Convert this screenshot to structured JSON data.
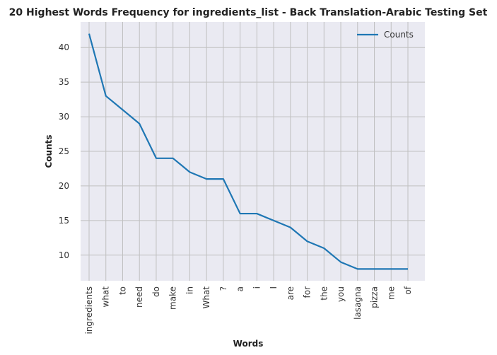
{
  "chart_data": {
    "type": "line",
    "title": "20 Highest Words Frequency for ingredients_list - Back Translation-Arabic Testing Set",
    "xlabel": "Words",
    "ylabel": "Counts",
    "categories": [
      "ingredients",
      "what",
      "to",
      "need",
      "do",
      "make",
      "in",
      "What",
      "?",
      "a",
      "i",
      "I",
      "are",
      "for",
      "the",
      "you",
      "lasagna",
      "pizza",
      "me",
      "of"
    ],
    "series": [
      {
        "name": "Counts",
        "values": [
          42,
          33,
          31,
          29,
          24,
          24,
          22,
          21,
          21,
          16,
          16,
          15,
          14,
          12,
          11,
          9,
          8,
          8,
          8,
          8
        ]
      }
    ],
    "ylim": [
      6.3,
      43.7
    ],
    "yticks": [
      10,
      15,
      20,
      25,
      30,
      35,
      40
    ],
    "grid": true,
    "legend": "top-right",
    "colors": {
      "line": "#1f77b4",
      "plot_bg": "#eaeaf2",
      "grid": "#c0c0c0"
    }
  }
}
